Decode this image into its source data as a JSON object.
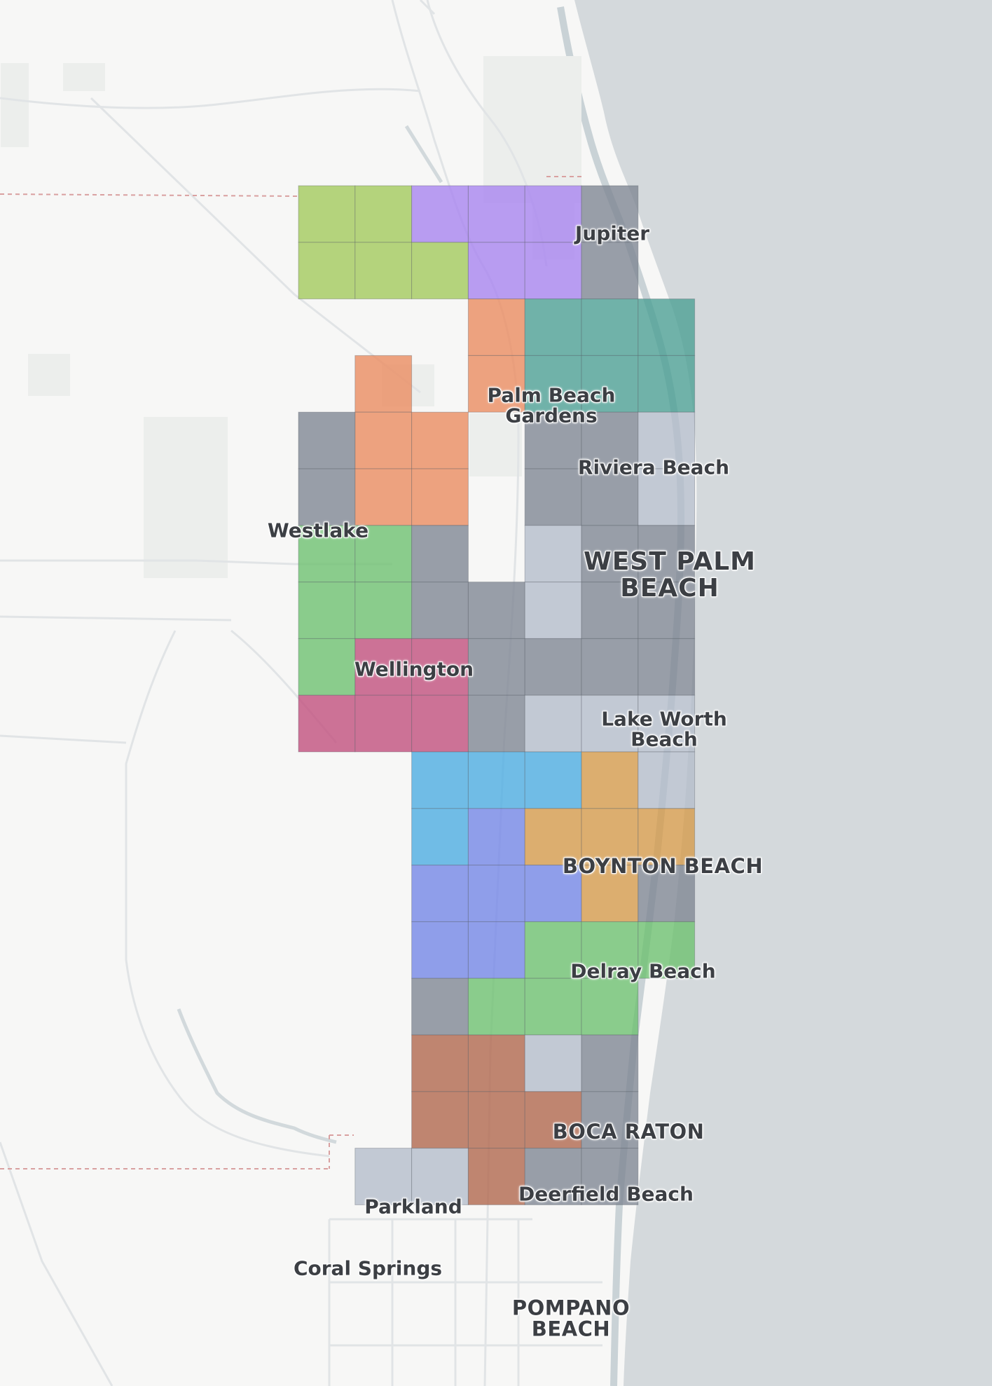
{
  "map": {
    "colors": {
      "land": "#f7f7f6",
      "ocean": "#d4d9dc",
      "park": "#eceeec",
      "road": "#e4e7e8",
      "water": "#c9d2d6",
      "boundary": "#d9a0a0",
      "grid_line": "#5a5f66"
    },
    "palette": {
      "lime": "#a2c95a",
      "lavender": "#a683ef",
      "gray": "#7e8592",
      "teal": "#4a9f93",
      "orange": "#ea8a5e",
      "green": "#6cc06e",
      "pink": "#c04d7b",
      "lightgray": "#b3bdcb",
      "skyblue": "#4aace1",
      "periwinkle": "#7285e7",
      "tan": "#d59a49",
      "brown": "#b0654a"
    },
    "grid_cells": [
      [
        "lime",
        "lime",
        "lavender",
        "lavender",
        "lavender",
        "gray",
        null
      ],
      [
        "lime",
        "lime",
        "lime",
        "lavender",
        "lavender",
        "gray",
        null
      ],
      [
        null,
        null,
        null,
        "orange",
        "teal",
        "teal",
        "teal"
      ],
      [
        null,
        "orange",
        null,
        "orange",
        "teal",
        "teal",
        "teal"
      ],
      [
        "gray",
        "orange",
        "orange",
        null,
        "gray",
        "gray",
        "lightgray"
      ],
      [
        "gray",
        "orange",
        "orange",
        null,
        "gray",
        "gray",
        "lightgray"
      ],
      [
        "green",
        "green",
        "gray",
        null,
        "lightgray",
        "gray",
        "gray"
      ],
      [
        "green",
        "green",
        "gray",
        "gray",
        "lightgray",
        "gray",
        "gray"
      ],
      [
        "green",
        "pink",
        "pink",
        "gray",
        "gray",
        "gray",
        "gray"
      ],
      [
        "pink",
        "pink",
        "pink",
        "gray",
        "lightgray",
        "lightgray",
        "lightgray"
      ],
      [
        null,
        null,
        "skyblue",
        "skyblue",
        "skyblue",
        "tan",
        "lightgray"
      ],
      [
        null,
        null,
        "skyblue",
        "periwinkle",
        "tan",
        "tan",
        "tan"
      ],
      [
        null,
        null,
        "periwinkle",
        "periwinkle",
        "periwinkle",
        "tan",
        "gray"
      ],
      [
        null,
        null,
        "periwinkle",
        "periwinkle",
        "green",
        "green",
        "green"
      ],
      [
        null,
        null,
        "gray",
        "green",
        "green",
        "green",
        null
      ],
      [
        null,
        null,
        "brown",
        "brown",
        "lightgray",
        "gray",
        null
      ],
      [
        null,
        null,
        "brown",
        "brown",
        "brown",
        "gray",
        null
      ],
      [
        null,
        "lightgray",
        "lightgray",
        "brown",
        "gray",
        "gray",
        null
      ]
    ],
    "labels": [
      {
        "id": "jupiter",
        "text": "Jupiter",
        "style": "town"
      },
      {
        "id": "palm-beach-gardens",
        "text": "Palm Beach\nGardens",
        "style": "town"
      },
      {
        "id": "riviera-beach",
        "text": "Riviera Beach",
        "style": "town"
      },
      {
        "id": "westlake",
        "text": "Westlake",
        "style": "town"
      },
      {
        "id": "west-palm-beach",
        "text": "WEST PALM\nBEACH",
        "style": "city"
      },
      {
        "id": "wellington",
        "text": "Wellington",
        "style": "town"
      },
      {
        "id": "lake-worth-beach",
        "text": "Lake Worth\nBeach",
        "style": "town"
      },
      {
        "id": "boynton-beach",
        "text": "BOYNTON BEACH",
        "style": "upper"
      },
      {
        "id": "delray-beach",
        "text": "Delray Beach",
        "style": "town"
      },
      {
        "id": "boca-raton",
        "text": "BOCA RATON",
        "style": "upper"
      },
      {
        "id": "parkland",
        "text": "Parkland",
        "style": "town"
      },
      {
        "id": "deerfield-beach",
        "text": "Deerfield Beach",
        "style": "town"
      },
      {
        "id": "coral-springs",
        "text": "Coral Springs",
        "style": "town"
      },
      {
        "id": "pompano-beach",
        "text": "POMPANO\nBEACH",
        "style": "upper"
      }
    ]
  }
}
